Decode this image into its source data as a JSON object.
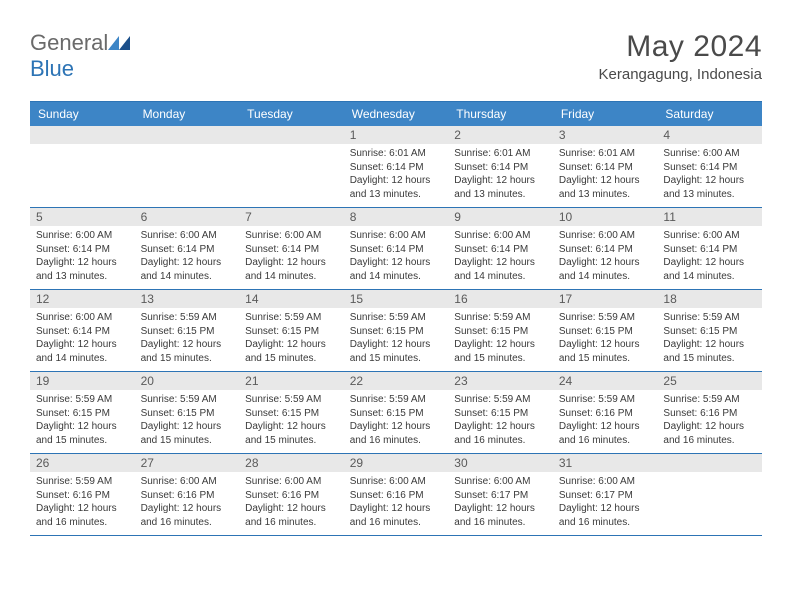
{
  "brand": {
    "name_part1": "General",
    "name_part2": "Blue"
  },
  "title": "May 2024",
  "location": "Kerangagung, Indonesia",
  "colors": {
    "header_bg": "#3d85c6",
    "header_text": "#ffffff",
    "band_bg": "#e8e8e8",
    "rule": "#2d74b5",
    "text": "#3a3a3a",
    "title_text": "#4a4a4a",
    "logo_gray": "#6a6a6a",
    "logo_blue": "#2d74b5",
    "page_bg": "#ffffff"
  },
  "typography": {
    "title_fontsize": 30,
    "location_fontsize": 15,
    "dow_fontsize": 12,
    "daynum_fontsize": 12,
    "info_fontsize": 10
  },
  "day_labels": [
    "Sunday",
    "Monday",
    "Tuesday",
    "Wednesday",
    "Thursday",
    "Friday",
    "Saturday"
  ],
  "weeks": [
    [
      null,
      null,
      null,
      {
        "day": "1",
        "sunrise": "Sunrise: 6:01 AM",
        "sunset": "Sunset: 6:14 PM",
        "daylight": "Daylight: 12 hours and 13 minutes."
      },
      {
        "day": "2",
        "sunrise": "Sunrise: 6:01 AM",
        "sunset": "Sunset: 6:14 PM",
        "daylight": "Daylight: 12 hours and 13 minutes."
      },
      {
        "day": "3",
        "sunrise": "Sunrise: 6:01 AM",
        "sunset": "Sunset: 6:14 PM",
        "daylight": "Daylight: 12 hours and 13 minutes."
      },
      {
        "day": "4",
        "sunrise": "Sunrise: 6:00 AM",
        "sunset": "Sunset: 6:14 PM",
        "daylight": "Daylight: 12 hours and 13 minutes."
      }
    ],
    [
      {
        "day": "5",
        "sunrise": "Sunrise: 6:00 AM",
        "sunset": "Sunset: 6:14 PM",
        "daylight": "Daylight: 12 hours and 13 minutes."
      },
      {
        "day": "6",
        "sunrise": "Sunrise: 6:00 AM",
        "sunset": "Sunset: 6:14 PM",
        "daylight": "Daylight: 12 hours and 14 minutes."
      },
      {
        "day": "7",
        "sunrise": "Sunrise: 6:00 AM",
        "sunset": "Sunset: 6:14 PM",
        "daylight": "Daylight: 12 hours and 14 minutes."
      },
      {
        "day": "8",
        "sunrise": "Sunrise: 6:00 AM",
        "sunset": "Sunset: 6:14 PM",
        "daylight": "Daylight: 12 hours and 14 minutes."
      },
      {
        "day": "9",
        "sunrise": "Sunrise: 6:00 AM",
        "sunset": "Sunset: 6:14 PM",
        "daylight": "Daylight: 12 hours and 14 minutes."
      },
      {
        "day": "10",
        "sunrise": "Sunrise: 6:00 AM",
        "sunset": "Sunset: 6:14 PM",
        "daylight": "Daylight: 12 hours and 14 minutes."
      },
      {
        "day": "11",
        "sunrise": "Sunrise: 6:00 AM",
        "sunset": "Sunset: 6:14 PM",
        "daylight": "Daylight: 12 hours and 14 minutes."
      }
    ],
    [
      {
        "day": "12",
        "sunrise": "Sunrise: 6:00 AM",
        "sunset": "Sunset: 6:14 PM",
        "daylight": "Daylight: 12 hours and 14 minutes."
      },
      {
        "day": "13",
        "sunrise": "Sunrise: 5:59 AM",
        "sunset": "Sunset: 6:15 PM",
        "daylight": "Daylight: 12 hours and 15 minutes."
      },
      {
        "day": "14",
        "sunrise": "Sunrise: 5:59 AM",
        "sunset": "Sunset: 6:15 PM",
        "daylight": "Daylight: 12 hours and 15 minutes."
      },
      {
        "day": "15",
        "sunrise": "Sunrise: 5:59 AM",
        "sunset": "Sunset: 6:15 PM",
        "daylight": "Daylight: 12 hours and 15 minutes."
      },
      {
        "day": "16",
        "sunrise": "Sunrise: 5:59 AM",
        "sunset": "Sunset: 6:15 PM",
        "daylight": "Daylight: 12 hours and 15 minutes."
      },
      {
        "day": "17",
        "sunrise": "Sunrise: 5:59 AM",
        "sunset": "Sunset: 6:15 PM",
        "daylight": "Daylight: 12 hours and 15 minutes."
      },
      {
        "day": "18",
        "sunrise": "Sunrise: 5:59 AM",
        "sunset": "Sunset: 6:15 PM",
        "daylight": "Daylight: 12 hours and 15 minutes."
      }
    ],
    [
      {
        "day": "19",
        "sunrise": "Sunrise: 5:59 AM",
        "sunset": "Sunset: 6:15 PM",
        "daylight": "Daylight: 12 hours and 15 minutes."
      },
      {
        "day": "20",
        "sunrise": "Sunrise: 5:59 AM",
        "sunset": "Sunset: 6:15 PM",
        "daylight": "Daylight: 12 hours and 15 minutes."
      },
      {
        "day": "21",
        "sunrise": "Sunrise: 5:59 AM",
        "sunset": "Sunset: 6:15 PM",
        "daylight": "Daylight: 12 hours and 15 minutes."
      },
      {
        "day": "22",
        "sunrise": "Sunrise: 5:59 AM",
        "sunset": "Sunset: 6:15 PM",
        "daylight": "Daylight: 12 hours and 16 minutes."
      },
      {
        "day": "23",
        "sunrise": "Sunrise: 5:59 AM",
        "sunset": "Sunset: 6:15 PM",
        "daylight": "Daylight: 12 hours and 16 minutes."
      },
      {
        "day": "24",
        "sunrise": "Sunrise: 5:59 AM",
        "sunset": "Sunset: 6:16 PM",
        "daylight": "Daylight: 12 hours and 16 minutes."
      },
      {
        "day": "25",
        "sunrise": "Sunrise: 5:59 AM",
        "sunset": "Sunset: 6:16 PM",
        "daylight": "Daylight: 12 hours and 16 minutes."
      }
    ],
    [
      {
        "day": "26",
        "sunrise": "Sunrise: 5:59 AM",
        "sunset": "Sunset: 6:16 PM",
        "daylight": "Daylight: 12 hours and 16 minutes."
      },
      {
        "day": "27",
        "sunrise": "Sunrise: 6:00 AM",
        "sunset": "Sunset: 6:16 PM",
        "daylight": "Daylight: 12 hours and 16 minutes."
      },
      {
        "day": "28",
        "sunrise": "Sunrise: 6:00 AM",
        "sunset": "Sunset: 6:16 PM",
        "daylight": "Daylight: 12 hours and 16 minutes."
      },
      {
        "day": "29",
        "sunrise": "Sunrise: 6:00 AM",
        "sunset": "Sunset: 6:16 PM",
        "daylight": "Daylight: 12 hours and 16 minutes."
      },
      {
        "day": "30",
        "sunrise": "Sunrise: 6:00 AM",
        "sunset": "Sunset: 6:17 PM",
        "daylight": "Daylight: 12 hours and 16 minutes."
      },
      {
        "day": "31",
        "sunrise": "Sunrise: 6:00 AM",
        "sunset": "Sunset: 6:17 PM",
        "daylight": "Daylight: 12 hours and 16 minutes."
      },
      null
    ]
  ]
}
